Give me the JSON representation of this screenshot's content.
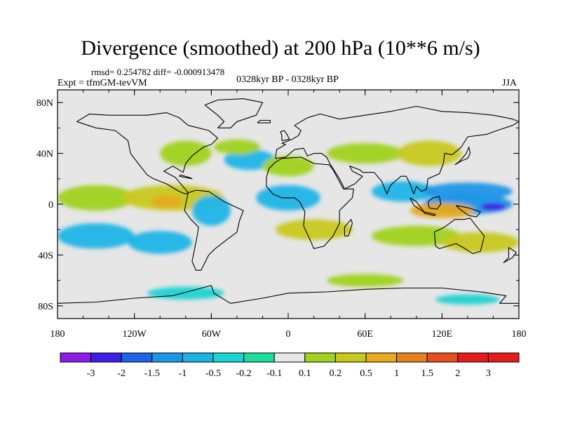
{
  "title": "Divergence (smoothed) at 200 hPa (10**6 m/s)",
  "stats": "rmsd= 0.254782 diff= -0.000913478",
  "left_label": "Expt = tfmGM-tevVM",
  "center_label": "0328kyr BP - 0328kyr BP",
  "right_label": "JJA",
  "map": {
    "projection": "cylindrical equidistant",
    "lon_range": [
      -180,
      180
    ],
    "lat_range": [
      -90,
      90
    ],
    "lat_ticks": [
      "80N",
      "40N",
      "0",
      "40S",
      "80S"
    ],
    "lon_ticks": [
      "180",
      "120W",
      "60W",
      "0",
      "60E",
      "120E",
      "180"
    ],
    "background": "#e6e6e6",
    "field_blobs": [
      {
        "lon": -150,
        "lat": 5,
        "rx": 30,
        "ry": 10,
        "level": "0.2"
      },
      {
        "lon": -90,
        "lat": 5,
        "rx": 40,
        "ry": 10,
        "level": "0.5"
      },
      {
        "lon": -95,
        "lat": 2,
        "rx": 12,
        "ry": 5,
        "level": "1"
      },
      {
        "lon": -150,
        "lat": -25,
        "rx": 30,
        "ry": 10,
        "level": "-0.5"
      },
      {
        "lon": -100,
        "lat": -30,
        "rx": 25,
        "ry": 9,
        "level": "-0.5"
      },
      {
        "lon": -60,
        "lat": -5,
        "rx": 15,
        "ry": 12,
        "level": "-0.5"
      },
      {
        "lon": -30,
        "lat": 35,
        "rx": 20,
        "ry": 8,
        "level": "-0.5"
      },
      {
        "lon": -80,
        "lat": 40,
        "rx": 20,
        "ry": 10,
        "level": "0.2"
      },
      {
        "lon": -40,
        "lat": 45,
        "rx": 18,
        "ry": 6,
        "level": "0.2"
      },
      {
        "lon": 0,
        "lat": 30,
        "rx": 20,
        "ry": 8,
        "level": "0.2"
      },
      {
        "lon": 0,
        "lat": 5,
        "rx": 25,
        "ry": 10,
        "level": "-0.5"
      },
      {
        "lon": 20,
        "lat": -20,
        "rx": 30,
        "ry": 8,
        "level": "0.5"
      },
      {
        "lon": 60,
        "lat": 40,
        "rx": 30,
        "ry": 8,
        "level": "0.2"
      },
      {
        "lon": 110,
        "lat": 40,
        "rx": 25,
        "ry": 10,
        "level": "0.5"
      },
      {
        "lon": 90,
        "lat": 10,
        "rx": 25,
        "ry": 8,
        "level": "-0.5"
      },
      {
        "lon": 140,
        "lat": 10,
        "rx": 35,
        "ry": 7,
        "level": "-1"
      },
      {
        "lon": 140,
        "lat": 0,
        "rx": 35,
        "ry": 8,
        "level": "-1"
      },
      {
        "lon": 160,
        "lat": -2,
        "rx": 10,
        "ry": 3,
        "level": "-2"
      },
      {
        "lon": 120,
        "lat": -5,
        "rx": 25,
        "ry": 6,
        "level": "1"
      },
      {
        "lon": 100,
        "lat": -25,
        "rx": 35,
        "ry": 8,
        "level": "0.2"
      },
      {
        "lon": 150,
        "lat": -30,
        "rx": 30,
        "ry": 8,
        "level": "0.5"
      },
      {
        "lon": -80,
        "lat": -70,
        "rx": 30,
        "ry": 5,
        "level": "-0.2"
      },
      {
        "lon": 60,
        "lat": -60,
        "rx": 30,
        "ry": 5,
        "level": "0.2"
      },
      {
        "lon": 140,
        "lat": -75,
        "rx": 25,
        "ry": 4,
        "level": "-0.2"
      }
    ]
  },
  "legend": {
    "labels": [
      "-3",
      "-2",
      "-1.5",
      "-1",
      "-0.5",
      "-0.2",
      "-0.1",
      "0.1",
      "0.2",
      "0.5",
      "1",
      "1.5",
      "2",
      "3"
    ],
    "colors": [
      "#8c1ce6",
      "#3c1ee6",
      "#1c64e6",
      "#1c96e6",
      "#1cb4e6",
      "#1cd2d2",
      "#1cdca0",
      "#e6e6e6",
      "#a0d21c",
      "#c8c81c",
      "#e6aa1c",
      "#e6821c",
      "#e6501c",
      "#e61c1c",
      "#e61c1c"
    ],
    "level_colors": {
      "-3": "#8c1ce6",
      "-2": "#3c1ee6",
      "-1.5": "#1c64e6",
      "-1": "#1c96e6",
      "-0.5": "#1cb4e6",
      "-0.2": "#1cd2d2",
      "-0.1": "#1cdca0",
      "0.1": "#a0d21c",
      "0.2": "#a0d21c",
      "0.5": "#c8c81c",
      "1": "#e6aa1c",
      "1.5": "#e6821c",
      "2": "#e6501c",
      "3": "#e61c1c"
    }
  }
}
